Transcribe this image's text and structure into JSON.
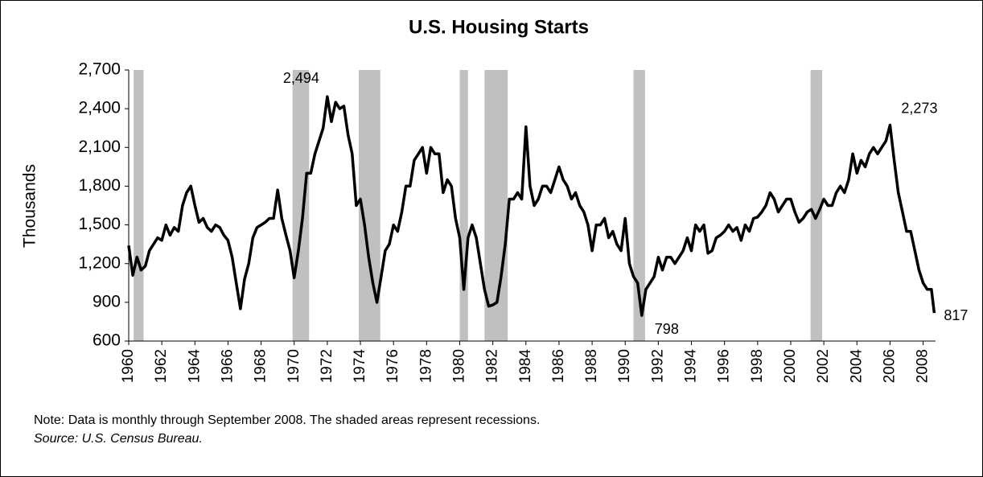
{
  "chart_data": {
    "type": "line",
    "title": "U.S. Housing Starts",
    "y_label": "Thousands",
    "note": "Note: Data is monthly through September 2008. The shaded areas represent recessions.",
    "source": "Source: U.S. Census Bureau.",
    "color": "#000000",
    "band_color": "#c0c0c0",
    "xlim": [
      1960,
      2008.75
    ],
    "ylim": [
      600,
      2700
    ],
    "xticks": [
      1960,
      1962,
      1964,
      1966,
      1968,
      1970,
      1972,
      1974,
      1976,
      1978,
      1980,
      1982,
      1984,
      1986,
      1988,
      1990,
      1992,
      1994,
      1996,
      1998,
      2000,
      2002,
      2004,
      2006,
      2008
    ],
    "yticks": [
      600,
      900,
      {
        "value": 1200,
        "label": "1,200"
      },
      {
        "value": 1500,
        "label": "1,500"
      },
      {
        "value": 1800,
        "label": "1,800"
      },
      {
        "value": 2100,
        "label": "2,100"
      },
      {
        "value": 2400,
        "label": "2,400"
      },
      {
        "value": 2700,
        "label": "2,700"
      }
    ],
    "recessions": [
      [
        1960.3,
        1960.9
      ],
      [
        1969.9,
        1970.9
      ],
      [
        1973.9,
        1975.2
      ],
      [
        1980.0,
        1980.5
      ],
      [
        1981.5,
        1982.9
      ],
      [
        1990.5,
        1991.2
      ],
      [
        2001.2,
        2001.9
      ]
    ],
    "annotations": [
      {
        "x": 1972.0,
        "value": 2494,
        "label": "2,494"
      },
      {
        "x": 2006.0,
        "value": 2273,
        "label": "2,273"
      },
      {
        "x": 1991.0,
        "value": 798,
        "label": "798"
      },
      {
        "x": 2008.67,
        "value": 817,
        "label": "817"
      }
    ],
    "x": [
      1960,
      1960.25,
      1960.5,
      1960.75,
      1961,
      1961.25,
      1961.5,
      1961.75,
      1962,
      1962.25,
      1962.5,
      1962.75,
      1963,
      1963.25,
      1963.5,
      1963.75,
      1964,
      1964.25,
      1964.5,
      1964.75,
      1965,
      1965.25,
      1965.5,
      1965.75,
      1966,
      1966.25,
      1966.5,
      1966.75,
      1967,
      1967.25,
      1967.5,
      1967.75,
      1968,
      1968.25,
      1968.5,
      1968.75,
      1969,
      1969.25,
      1969.5,
      1969.75,
      1970,
      1970.25,
      1970.5,
      1970.75,
      1971,
      1971.25,
      1971.5,
      1971.75,
      1972,
      1972.25,
      1972.5,
      1972.75,
      1973,
      1973.25,
      1973.5,
      1973.75,
      1974,
      1974.25,
      1974.5,
      1974.75,
      1975,
      1975.25,
      1975.5,
      1975.75,
      1976,
      1976.25,
      1976.5,
      1976.75,
      1977,
      1977.25,
      1977.5,
      1977.75,
      1978,
      1978.25,
      1978.5,
      1978.75,
      1979,
      1979.25,
      1979.5,
      1979.75,
      1980,
      1980.25,
      1980.5,
      1980.75,
      1981,
      1981.25,
      1981.5,
      1981.75,
      1982,
      1982.25,
      1982.5,
      1982.75,
      1983,
      1983.25,
      1983.5,
      1983.75,
      1984,
      1984.25,
      1984.5,
      1984.75,
      1985,
      1985.25,
      1985.5,
      1985.75,
      1986,
      1986.25,
      1986.5,
      1986.75,
      1987,
      1987.25,
      1987.5,
      1987.75,
      1988,
      1988.25,
      1988.5,
      1988.75,
      1989,
      1989.25,
      1989.5,
      1989.75,
      1990,
      1990.25,
      1990.5,
      1990.75,
      1991,
      1991.25,
      1991.5,
      1991.75,
      1992,
      1992.25,
      1992.5,
      1992.75,
      1993,
      1993.25,
      1993.5,
      1993.75,
      1994,
      1994.25,
      1994.5,
      1994.75,
      1995,
      1995.25,
      1995.5,
      1995.75,
      1996,
      1996.25,
      1996.5,
      1996.75,
      1997,
      1997.25,
      1997.5,
      1997.75,
      1998,
      1998.25,
      1998.5,
      1998.75,
      1999,
      1999.25,
      1999.5,
      1999.75,
      2000,
      2000.25,
      2000.5,
      2000.75,
      2001,
      2001.25,
      2001.5,
      2001.75,
      2002,
      2002.25,
      2002.5,
      2002.75,
      2003,
      2003.25,
      2003.5,
      2003.75,
      2004,
      2004.25,
      2004.5,
      2004.75,
      2005,
      2005.25,
      2005.5,
      2005.75,
      2006,
      2006.25,
      2006.5,
      2006.75,
      2007,
      2007.25,
      2007.5,
      2007.75,
      2008,
      2008.25,
      2008.5,
      2008.67
    ],
    "values": [
      1340,
      1110,
      1250,
      1150,
      1180,
      1300,
      1350,
      1400,
      1380,
      1500,
      1420,
      1480,
      1450,
      1650,
      1750,
      1800,
      1650,
      1520,
      1550,
      1480,
      1450,
      1500,
      1480,
      1420,
      1380,
      1250,
      1050,
      850,
      1080,
      1200,
      1400,
      1480,
      1500,
      1520,
      1550,
      1550,
      1770,
      1550,
      1420,
      1300,
      1090,
      1300,
      1550,
      1900,
      1900,
      2050,
      2150,
      2250,
      2494,
      2300,
      2450,
      2400,
      2420,
      2200,
      2050,
      1650,
      1700,
      1500,
      1250,
      1050,
      900,
      1100,
      1300,
      1350,
      1500,
      1450,
      1600,
      1800,
      1800,
      2000,
      2050,
      2100,
      1900,
      2100,
      2050,
      2050,
      1750,
      1850,
      1800,
      1550,
      1400,
      1000,
      1400,
      1500,
      1400,
      1200,
      1000,
      870,
      880,
      900,
      1100,
      1350,
      1700,
      1700,
      1750,
      1700,
      2260,
      1800,
      1650,
      1700,
      1800,
      1800,
      1750,
      1850,
      1950,
      1850,
      1800,
      1700,
      1750,
      1650,
      1600,
      1500,
      1300,
      1500,
      1500,
      1550,
      1400,
      1450,
      1350,
      1300,
      1550,
      1200,
      1100,
      1050,
      798,
      1000,
      1050,
      1100,
      1250,
      1150,
      1250,
      1250,
      1200,
      1250,
      1300,
      1400,
      1300,
      1500,
      1450,
      1500,
      1280,
      1300,
      1400,
      1420,
      1450,
      1500,
      1450,
      1480,
      1380,
      1500,
      1450,
      1550,
      1560,
      1600,
      1650,
      1750,
      1700,
      1600,
      1650,
      1700,
      1700,
      1600,
      1520,
      1550,
      1600,
      1620,
      1550,
      1620,
      1700,
      1650,
      1650,
      1750,
      1800,
      1750,
      1850,
      2050,
      1900,
      2000,
      1950,
      2050,
      2100,
      2050,
      2100,
      2150,
      2273,
      2000,
      1750,
      1600,
      1450,
      1450,
      1300,
      1150,
      1050,
      1000,
      1000,
      817
    ]
  }
}
